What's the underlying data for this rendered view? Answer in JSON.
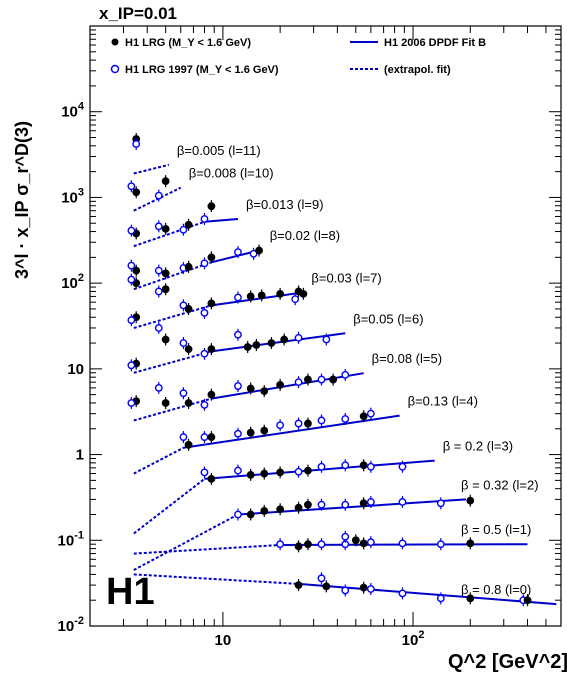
{
  "chart_data": {
    "type": "scatter",
    "title": "x_IP=0.01",
    "ylabel": "3^l · x_IP σ_r^D(3)",
    "xlabel": "Q^2 [GeV^2]",
    "x_scale": "log",
    "y_scale": "log",
    "xlim": [
      2,
      600
    ],
    "ylim": [
      0.01,
      100000
    ],
    "x_tick_labels": [
      "10",
      "10^2"
    ],
    "y_tick_labels": [
      "10^-2",
      "10^-1",
      "1",
      "10",
      "10^2",
      "10^3",
      "10^4"
    ],
    "experiment_label": "H1",
    "legend": [
      {
        "label": "H1 LRG (M_Y < 1.6 GeV)",
        "marker": "filled-circle"
      },
      {
        "label": "H1 LRG 1997 (M_Y < 1.6 GeV)",
        "marker": "open-circle"
      },
      {
        "label": "H1 2006 DPDF Fit B",
        "style": "solid"
      },
      {
        "label": "(extrapol. fit)",
        "style": "dashed"
      }
    ],
    "colors": {
      "data": "#000000",
      "data_1997": "#0000ff",
      "fit": "#0000cc"
    },
    "series": [
      {
        "name": "β=0.005 (l=11)",
        "points": [
          [
            3.5,
            4800,
            "f"
          ],
          [
            3.5,
            4200,
            "o"
          ]
        ],
        "fit_dashed": [
          [
            3.4,
            1900
          ],
          [
            5.2,
            2400
          ]
        ],
        "fit_solid": []
      },
      {
        "name": "β=0.008 (l=10)",
        "points": [
          [
            3.5,
            1150,
            "f"
          ],
          [
            3.3,
            1350,
            "o"
          ],
          [
            4.6,
            1050,
            "o"
          ],
          [
            5.0,
            1550,
            "f"
          ]
        ],
        "fit_dashed": [
          [
            3.4,
            700
          ],
          [
            6.0,
            1300
          ]
        ],
        "fit_solid": []
      },
      {
        "name": "β=0.013 (l=9)",
        "points": [
          [
            3.5,
            380,
            "f"
          ],
          [
            3.3,
            410,
            "o"
          ],
          [
            4.6,
            460,
            "o"
          ],
          [
            5.0,
            430,
            "f"
          ],
          [
            6.2,
            420,
            "o"
          ],
          [
            6.6,
            480,
            "f"
          ],
          [
            8.0,
            560,
            "o"
          ],
          [
            8.7,
            790,
            "f"
          ]
        ],
        "fit_dashed": [
          [
            3.4,
            270
          ],
          [
            8.0,
            520
          ]
        ],
        "fit_solid": [
          [
            8.0,
            520
          ],
          [
            12.0,
            560
          ]
        ]
      },
      {
        "name": "β=0.02 (l=8)",
        "points": [
          [
            3.5,
            140,
            "f"
          ],
          [
            3.3,
            160,
            "o"
          ],
          [
            4.6,
            140,
            "o"
          ],
          [
            5.0,
            130,
            "f"
          ],
          [
            6.2,
            150,
            "o"
          ],
          [
            6.6,
            155,
            "f"
          ],
          [
            8.0,
            170,
            "o"
          ],
          [
            8.7,
            200,
            "f"
          ],
          [
            12.0,
            230,
            "o"
          ],
          [
            14.5,
            220,
            "o"
          ],
          [
            15.5,
            240,
            "f"
          ]
        ],
        "fit_dashed": [
          [
            3.4,
            85
          ],
          [
            8.7,
            175
          ]
        ],
        "fit_solid": [
          [
            8.7,
            175
          ],
          [
            16.0,
            245
          ]
        ]
      },
      {
        "name": "β=0.03 (l=7)",
        "points": [
          [
            3.5,
            100,
            "f"
          ],
          [
            3.3,
            110,
            "o"
          ],
          [
            4.6,
            80,
            "o"
          ],
          [
            5.0,
            85,
            "f"
          ],
          [
            6.2,
            55,
            "o"
          ],
          [
            6.6,
            50,
            "f"
          ],
          [
            8.0,
            45,
            "o"
          ],
          [
            8.7,
            58,
            "f"
          ],
          [
            12.0,
            68,
            "o"
          ],
          [
            14.0,
            70,
            "f"
          ],
          [
            16.0,
            72,
            "f"
          ],
          [
            20.0,
            75,
            "f"
          ],
          [
            25.0,
            80,
            "f"
          ],
          [
            24.0,
            65,
            "o"
          ],
          [
            26.5,
            75,
            "f"
          ]
        ],
        "fit_dashed": [
          [
            3.4,
            30
          ],
          [
            8.7,
            55
          ]
        ],
        "fit_solid": [
          [
            8.7,
            55
          ],
          [
            26.5,
            78
          ]
        ]
      },
      {
        "name": "β=0.05 (l=6)",
        "points": [
          [
            3.5,
            40,
            "f"
          ],
          [
            3.3,
            37,
            "o"
          ],
          [
            4.6,
            30,
            "o"
          ],
          [
            5.0,
            22,
            "f"
          ],
          [
            6.2,
            20,
            "o"
          ],
          [
            6.6,
            17,
            "f"
          ],
          [
            8.0,
            15,
            "o"
          ],
          [
            8.7,
            17,
            "f"
          ],
          [
            12.0,
            25,
            "o"
          ],
          [
            13.5,
            18,
            "f"
          ],
          [
            15.0,
            19,
            "f"
          ],
          [
            18.0,
            20,
            "f"
          ],
          [
            21.0,
            22,
            "f"
          ],
          [
            25.0,
            23,
            "o"
          ],
          [
            35.0,
            22,
            "o"
          ]
        ],
        "fit_dashed": [
          [
            3.4,
            9
          ],
          [
            8.7,
            16
          ]
        ],
        "fit_solid": [
          [
            8.7,
            16
          ],
          [
            44.0,
            26
          ]
        ]
      },
      {
        "name": "β=0.08 (l=5)",
        "points": [
          [
            3.5,
            11.5,
            "f"
          ],
          [
            3.3,
            11.0,
            "o"
          ],
          [
            4.6,
            6.0,
            "o"
          ],
          [
            5.0,
            4.0,
            "f"
          ],
          [
            6.2,
            5.2,
            "o"
          ],
          [
            6.6,
            4.0,
            "f"
          ],
          [
            8.0,
            3.8,
            "o"
          ],
          [
            8.7,
            5.0,
            "f"
          ],
          [
            12.0,
            6.3,
            "o"
          ],
          [
            14.0,
            5.9,
            "f"
          ],
          [
            16.5,
            5.5,
            "f"
          ],
          [
            20.0,
            6.5,
            "f"
          ],
          [
            25.0,
            7.0,
            "o"
          ],
          [
            28.0,
            7.5,
            "f"
          ],
          [
            33.0,
            7.5,
            "o"
          ],
          [
            38.0,
            7.5,
            "f"
          ],
          [
            44.0,
            8.5,
            "o"
          ]
        ],
        "fit_dashed": [
          [
            3.4,
            2.5
          ],
          [
            8.7,
            4.5
          ]
        ],
        "fit_solid": [
          [
            8.7,
            4.5
          ],
          [
            55.0,
            8.9
          ]
        ]
      },
      {
        "name": "β=0.13 (l=4)",
        "points": [
          [
            3.5,
            4.2,
            "f"
          ],
          [
            3.3,
            4.0,
            "o"
          ],
          [
            8.0,
            1.6,
            "o"
          ],
          [
            8.7,
            1.6,
            "f"
          ],
          [
            6.2,
            1.6,
            "o"
          ],
          [
            6.6,
            1.3,
            "f"
          ],
          [
            12.0,
            1.75,
            "o"
          ],
          [
            14.0,
            1.8,
            "f"
          ],
          [
            16.5,
            1.9,
            "f"
          ],
          [
            20.0,
            2.2,
            "o"
          ],
          [
            25.0,
            2.3,
            "o"
          ],
          [
            28.0,
            2.3,
            "f"
          ],
          [
            33.0,
            2.5,
            "o"
          ],
          [
            44.0,
            2.6,
            "o"
          ],
          [
            55.0,
            2.8,
            "f"
          ],
          [
            60.0,
            3.0,
            "o"
          ]
        ],
        "fit_dashed": [
          [
            3.4,
            0.6
          ],
          [
            6.2,
            1.2
          ]
        ],
        "fit_solid": [
          [
            6.2,
            1.2
          ],
          [
            85.0,
            2.85
          ]
        ]
      },
      {
        "name": "β = 0.2 (l=3)",
        "points": [
          [
            8.0,
            0.62,
            "o"
          ],
          [
            8.7,
            0.52,
            "f"
          ],
          [
            12.0,
            0.65,
            "o"
          ],
          [
            14.0,
            0.58,
            "f"
          ],
          [
            16.5,
            0.6,
            "f"
          ],
          [
            20.0,
            0.62,
            "f"
          ],
          [
            25.0,
            0.63,
            "o"
          ],
          [
            28.0,
            0.65,
            "f"
          ],
          [
            33.0,
            0.72,
            "o"
          ],
          [
            44.0,
            0.75,
            "o"
          ],
          [
            55.0,
            0.75,
            "f"
          ],
          [
            60.0,
            0.72,
            "o"
          ],
          [
            88.0,
            0.72,
            "o"
          ]
        ],
        "fit_dashed": [
          [
            3.4,
            0.12
          ],
          [
            8.0,
            0.52
          ]
        ],
        "fit_solid": [
          [
            8.0,
            0.52
          ],
          [
            130.0,
            0.85
          ]
        ]
      },
      {
        "name": "β = 0.32 (l=2)",
        "points": [
          [
            12.0,
            0.2,
            "o"
          ],
          [
            14.0,
            0.2,
            "f"
          ],
          [
            16.5,
            0.22,
            "f"
          ],
          [
            20.0,
            0.23,
            "f"
          ],
          [
            25.0,
            0.24,
            "f"
          ],
          [
            28.0,
            0.26,
            "f"
          ],
          [
            33.0,
            0.26,
            "o"
          ],
          [
            44.0,
            0.26,
            "o"
          ],
          [
            55.0,
            0.27,
            "f"
          ],
          [
            60.0,
            0.28,
            "o"
          ],
          [
            88.0,
            0.28,
            "o"
          ],
          [
            140.0,
            0.27,
            "o"
          ],
          [
            200.0,
            0.29,
            "f"
          ]
        ],
        "fit_dashed": [
          [
            3.4,
            0.045
          ],
          [
            12.0,
            0.2
          ]
        ],
        "fit_solid": [
          [
            12.0,
            0.2
          ],
          [
            190.0,
            0.3
          ]
        ]
      },
      {
        "name": "β = 0.5 (l=1)",
        "points": [
          [
            20.0,
            0.09,
            "o"
          ],
          [
            25.0,
            0.085,
            "f"
          ],
          [
            28.0,
            0.09,
            "f"
          ],
          [
            33.0,
            0.09,
            "o"
          ],
          [
            44.0,
            0.09,
            "o"
          ],
          [
            44.0,
            0.11,
            "o"
          ],
          [
            50.0,
            0.1,
            "f"
          ],
          [
            55.0,
            0.092,
            "f"
          ],
          [
            60.0,
            0.095,
            "o"
          ],
          [
            88.0,
            0.092,
            "o"
          ],
          [
            140.0,
            0.09,
            "o"
          ],
          [
            200.0,
            0.092,
            "f"
          ]
        ],
        "fit_dashed": [
          [
            3.4,
            0.07
          ],
          [
            20.0,
            0.088
          ]
        ],
        "fit_solid": [
          [
            20.0,
            0.088
          ],
          [
            400.0,
            0.09
          ]
        ]
      },
      {
        "name": "β = 0.8 (l=0)",
        "points": [
          [
            25.0,
            0.03,
            "f"
          ],
          [
            33.0,
            0.036,
            "o"
          ],
          [
            35.0,
            0.029,
            "f"
          ],
          [
            44.0,
            0.026,
            "o"
          ],
          [
            55.0,
            0.028,
            "f"
          ],
          [
            60.0,
            0.027,
            "o"
          ],
          [
            88.0,
            0.024,
            "o"
          ],
          [
            140.0,
            0.021,
            "o"
          ],
          [
            200.0,
            0.021,
            "f"
          ],
          [
            380.0,
            0.02,
            "o"
          ],
          [
            400.0,
            0.02,
            "f"
          ]
        ],
        "fit_dashed": [
          [
            3.4,
            0.04
          ],
          [
            25.0,
            0.031
          ]
        ],
        "fit_solid": [
          [
            25.0,
            0.031
          ],
          [
            567.0,
            0.018
          ]
        ]
      }
    ]
  }
}
